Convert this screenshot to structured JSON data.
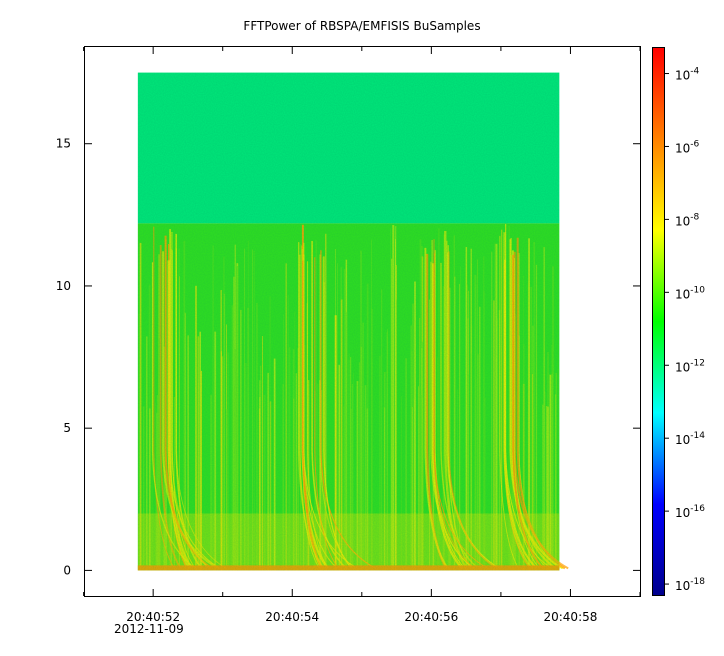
{
  "chart_data": {
    "type": "heatmap",
    "title": "FFTPower of RBSPA/EMFISIS  BuSamples",
    "xlabel": "",
    "ylabel": "",
    "date_label": "2012-11-09",
    "x_ticks": [
      "20:40:52",
      "20:40:54",
      "20:40:56",
      "20:40:58"
    ],
    "x_tick_values_sec": [
      0,
      2,
      4,
      6
    ],
    "x_minor_tick_values_sec": [
      -1,
      1,
      3,
      5,
      7
    ],
    "data_xrange_sec": [
      -0.22,
      5.84
    ],
    "xlim_sec": [
      -0.98,
      7.0
    ],
    "y_ticks": [
      "0",
      "5",
      "10",
      "15"
    ],
    "y_tick_values": [
      0,
      5,
      10,
      15
    ],
    "ylim": [
      -0.9,
      18.4
    ],
    "data_yrange": [
      0,
      17.5
    ],
    "z_scale": "log",
    "colorbar": {
      "ticks": [
        {
          "base": "10",
          "exp": "-4",
          "value": -4
        },
        {
          "base": "10",
          "exp": "-6",
          "value": -6
        },
        {
          "base": "10",
          "exp": "-8",
          "value": -8
        },
        {
          "base": "10",
          "exp": "-10",
          "value": -10
        },
        {
          "base": "10",
          "exp": "-12",
          "value": -12
        },
        {
          "base": "10",
          "exp": "-14",
          "value": -14
        },
        {
          "base": "10",
          "exp": "-16",
          "value": -16
        },
        {
          "base": "10",
          "exp": "-18",
          "value": -18
        }
      ],
      "range_log10": [
        -18.3,
        -3.3
      ],
      "colormap": [
        "#00008c",
        "#0000ff",
        "#00ffff",
        "#00ff00",
        "#ffff00",
        "#ff8000",
        "#ff0000"
      ]
    },
    "features": {
      "background_above_12.2": "#00e87a",
      "background_below_12.2": "#30e020",
      "upper_band_level_log10": -12.3,
      "lower_band_level_log10": -10.3,
      "intense_band_0_to_2": "#f0e800",
      "bursts_sec": [
        0.1,
        2.2,
        4.0,
        5.0
      ]
    }
  }
}
